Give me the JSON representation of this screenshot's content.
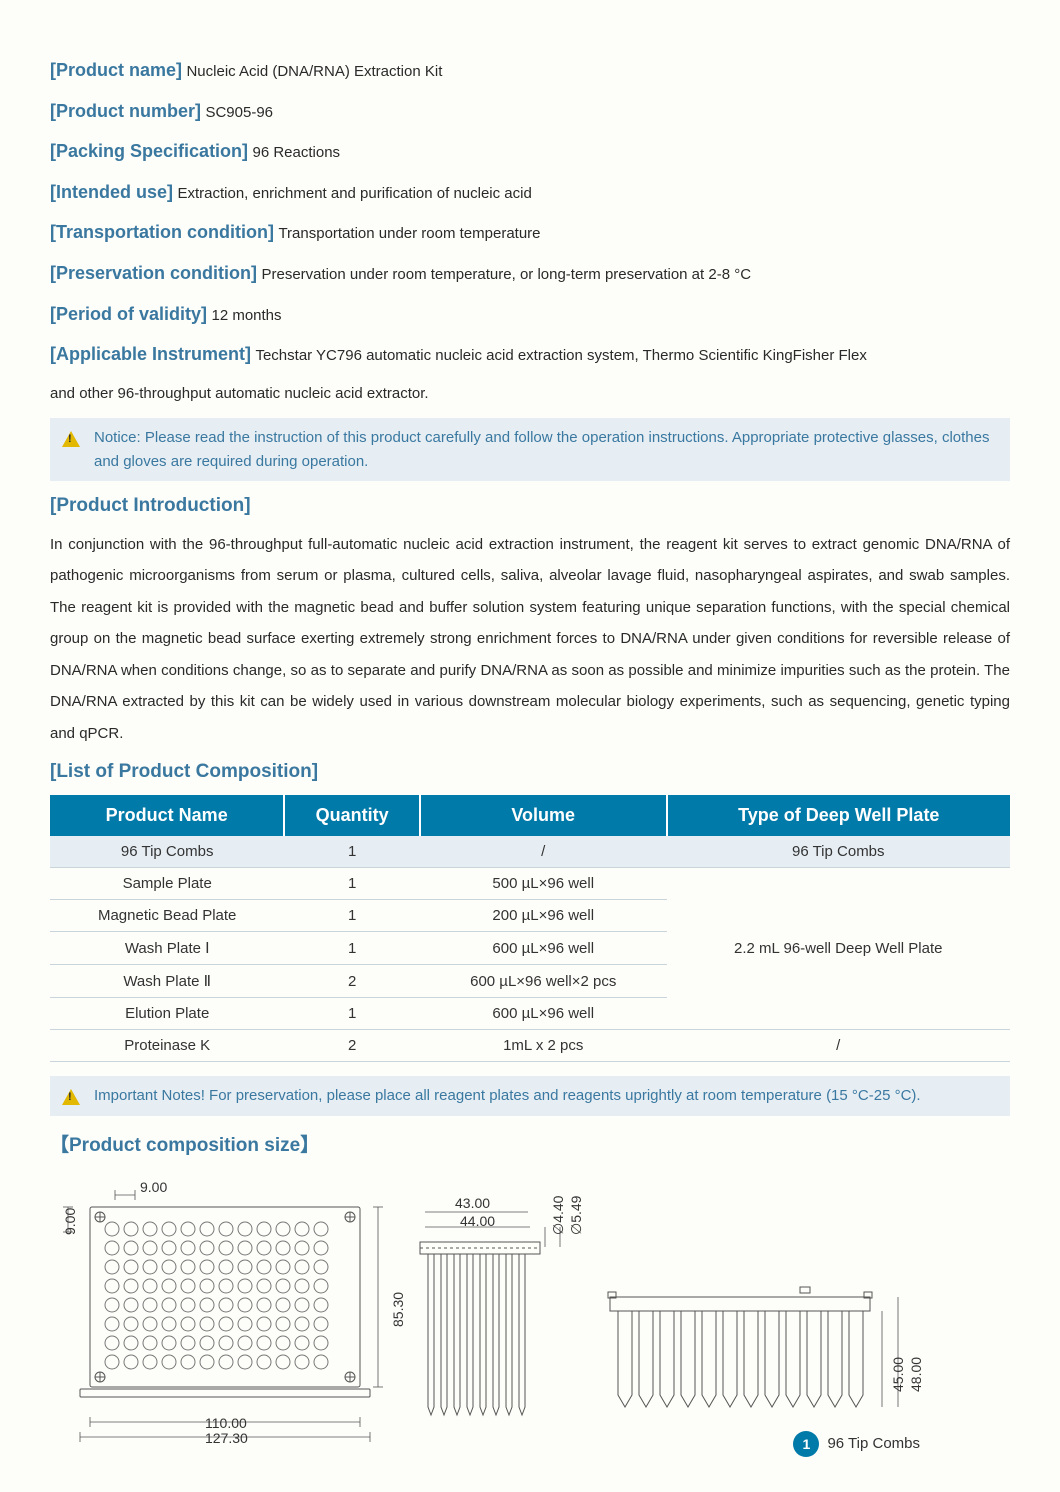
{
  "meta": {
    "product_name_label": "[Product name]",
    "product_name_value": "Nucleic Acid (DNA/RNA) Extraction Kit",
    "product_number_label": "[Product number]",
    "product_number_value": "SC905-96",
    "packing_label": "[Packing Specification]",
    "packing_value": "96 Reactions",
    "intended_label": "[Intended use]",
    "intended_value": "Extraction, enrichment and purification of nucleic acid",
    "transport_label": "[Transportation condition]",
    "transport_value": "Transportation under room temperature",
    "preserve_label": "[Preservation condition]",
    "preserve_value": "Preservation under room temperature, or long-term preservation at 2-8 °C",
    "validity_label": "[Period of validity]",
    "validity_value": "12 months",
    "instrument_label": "[Applicable Instrument]",
    "instrument_value": "Techstar YC796 automatic nucleic acid extraction system, Thermo Scientific KingFisher Flex",
    "instrument_value2": "and other 96-throughput automatic nucleic acid extractor."
  },
  "notice1": "Notice: Please read the instruction of this product carefully and follow the operation instructions. Appropriate protective glasses, clothes and gloves are required during operation.",
  "sections": {
    "intro_h": "[Product Introduction]",
    "intro_body": "In conjunction with the 96-throughput full-automatic nucleic acid extraction instrument, the reagent kit serves to extract genomic DNA/RNA of pathogenic microorganisms from serum or plasma, cultured cells, saliva, alveolar lavage fluid, nasopharyngeal aspirates, and swab samples. The reagent kit is provided with the magnetic bead and buffer solution system featuring unique separation functions, with the special chemical group on the magnetic bead surface exerting extremely strong enrichment forces to DNA/RNA under given conditions for reversible release of DNA/RNA when conditions change, so as to separate and purify DNA/RNA as soon as possible and minimize impurities such as the protein. The DNA/RNA extracted by this kit can be widely used in various downstream molecular biology experiments, such as sequencing, genetic typing and qPCR.",
    "comp_h": "[List of Product Composition]",
    "size_h": "【Product composition size】"
  },
  "table": {
    "columns": [
      "Product Name",
      "Quantity",
      "Volume",
      "Type of Deep Well Plate"
    ],
    "rows": [
      [
        "96 Tip Combs",
        "1",
        "/",
        "96 Tip Combs"
      ],
      [
        "Sample Plate",
        "1",
        "500 µL×96 well",
        ""
      ],
      [
        "Magnetic Bead Plate",
        "1",
        "200 µL×96 well",
        ""
      ],
      [
        "Wash Plate Ⅰ",
        "1",
        "600 µL×96 well",
        "2.2 mL 96-well Deep Well Plate"
      ],
      [
        "Wash Plate Ⅱ",
        "2",
        "600 µL×96 well×2 pcs",
        ""
      ],
      [
        "Elution Plate",
        "1",
        "600 µL×96 well",
        ""
      ],
      [
        "Proteinase K",
        "2",
        "1mL x 2 pcs",
        "/"
      ]
    ],
    "merged_label": "2.2 mL 96-well Deep Well Plate"
  },
  "notice2": "Important Notes! For preservation, please place all reagent plates and reagents uprightly at room temperature (15 °C-25 °C).",
  "dimensions": {
    "top_plate": {
      "w": "110.00",
      "w2": "127.30",
      "h": "85.30",
      "pitch": "9.00",
      "pitch_v": "9.00"
    },
    "mid": {
      "w1": "43.00",
      "w2": "44.00",
      "d1": "∅4.40",
      "d2": "∅5.49"
    },
    "side": {
      "h1": "45.00",
      "h2": "48.00"
    }
  },
  "footer": {
    "num": "1",
    "label": "96 Tip Combs"
  },
  "colors": {
    "brand": "#3a78a0",
    "table_header": "#007aa8",
    "notice_bg": "#e6eef4",
    "warn": "#e2b800"
  }
}
